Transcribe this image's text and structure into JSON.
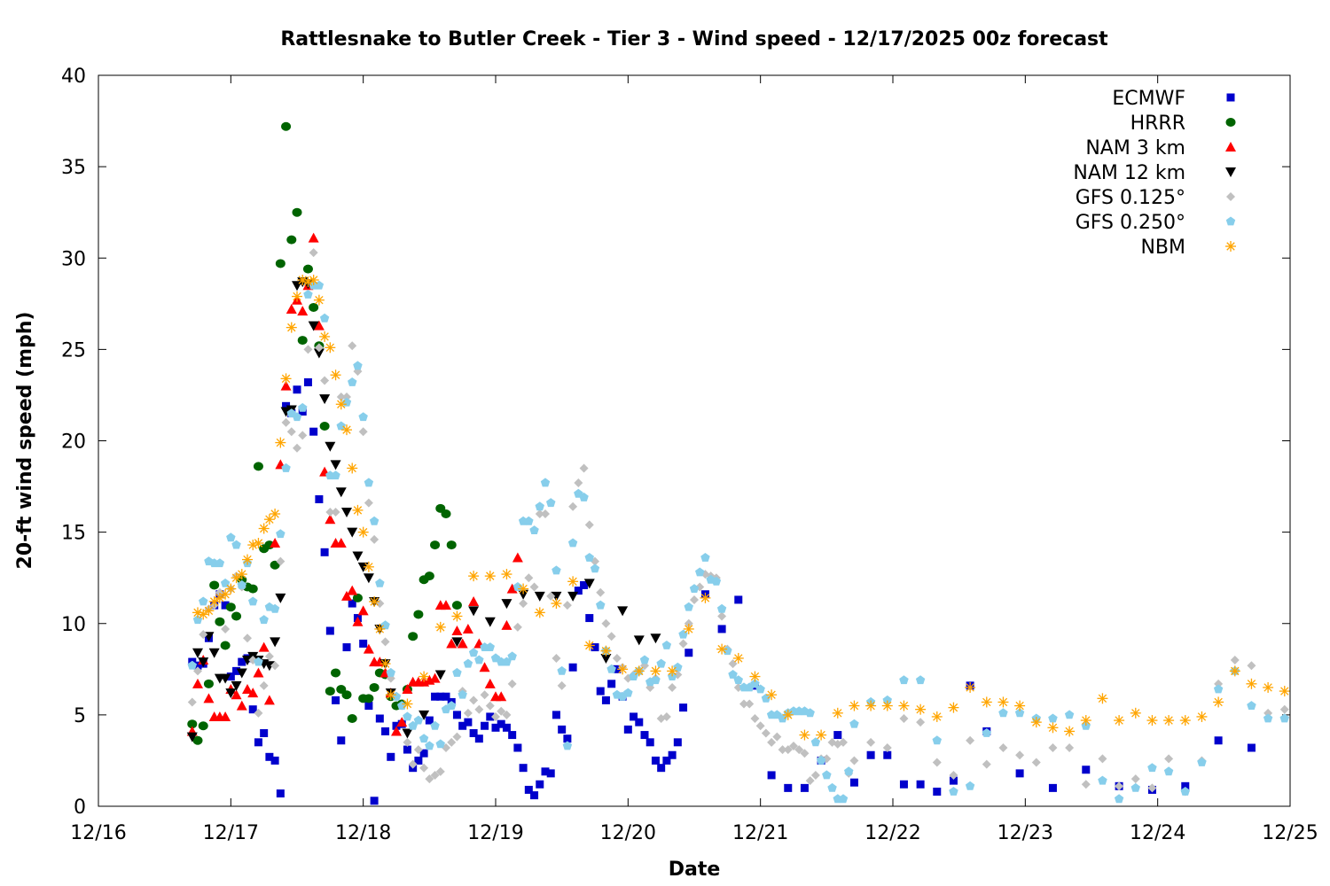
{
  "chart_data": {
    "type": "scatter",
    "title": "Rattlesnake to Butler Creek - Tier 3 - Wind speed - 12/17/2025 00z forecast",
    "xlabel": "Date",
    "ylabel": "20-ft wind speed (mph)",
    "xlim": [
      "2025-12-16T00:00",
      "2025-12-25T00:00"
    ],
    "ylim": [
      0,
      40
    ],
    "x_ticks": [
      "12/16",
      "12/17",
      "12/18",
      "12/19",
      "12/20",
      "12/21",
      "12/22",
      "12/23",
      "12/24",
      "12/25"
    ],
    "y_ticks": [
      "0",
      "5",
      "10",
      "15",
      "20",
      "25",
      "30",
      "35",
      "40"
    ],
    "grid": false,
    "legend_position": "top-right",
    "series": [
      {
        "name": "ECMWF",
        "marker": "square",
        "color": "#0000cc",
        "segments": [
          {
            "start": "2025-12-16T17:00",
            "step_hours": 1,
            "values": [
              7.9,
              7.7,
              7.8,
              9.2,
              11.0,
              11.6,
              11.0,
              7.1,
              7.4,
              7.9,
              8.1,
              5.3,
              3.5,
              4.0,
              2.7,
              2.5,
              0.7,
              21.9,
              21.5,
              22.8,
              21.6,
              23.2,
              20.5,
              16.8,
              13.9,
              9.6,
              5.8,
              3.6,
              8.7,
              11.1,
              10.3,
              8.9,
              5.5,
              0.3,
              4.8,
              4.1,
              2.7,
              4.4,
              4.5,
              3.1,
              2.1,
              2.5,
              2.9,
              4.7,
              6.0,
              6.0,
              6.0,
              5.7,
              5.0,
              4.4,
              4.6,
              4.0,
              3.7,
              4.4,
              4.9,
              4.3,
              4.5,
              4.3,
              3.9,
              3.2,
              2.1,
              0.9,
              0.6,
              1.2,
              1.9,
              1.8,
              5.0,
              4.2,
              3.7,
              7.6,
              11.8,
              12.1,
              10.3,
              8.7,
              6.3,
              5.8,
              6.7,
              7.5,
              6.0,
              4.2,
              4.9,
              4.6,
              3.9,
              3.5,
              2.5,
              2.1,
              2.5,
              2.8,
              3.5,
              5.4,
              8.4
            ]
          },
          {
            "start": "2025-12-20T14:00",
            "step_hours": 3,
            "values": [
              11.6,
              9.7,
              11.3,
              6.6,
              1.7,
              1.0,
              1.0,
              2.5,
              3.9,
              1.3,
              2.8,
              2.8,
              1.2,
              1.2,
              0.8,
              1.4,
              6.6,
              4.1
            ]
          },
          {
            "start": "2025-12-22T23:00",
            "step_hours": 6,
            "values": [
              1.8,
              1.0,
              2.0,
              1.1,
              0.9,
              1.1,
              3.6,
              3.2
            ]
          }
        ]
      },
      {
        "name": "HRRR",
        "marker": "circle",
        "color": "#006400",
        "segments": [
          {
            "start": "2025-12-16T17:00",
            "step_hours": 1,
            "values": [
              4.5,
              3.6,
              4.4,
              6.7,
              12.1,
              10.1,
              8.8,
              10.9,
              10.4,
              12.4,
              12.0,
              11.9,
              18.6,
              14.1,
              14.3,
              13.2,
              29.7,
              37.2,
              31.0,
              32.5,
              25.5,
              29.4,
              27.3,
              25.2,
              20.8,
              6.3,
              7.3,
              6.4,
              6.1,
              4.8,
              11.4,
              5.9,
              5.9,
              6.5,
              7.3,
              7.2,
              6.0,
              5.5,
              5.6,
              6.4,
              9.3,
              10.5,
              12.4,
              12.6,
              14.3,
              16.3,
              16.0,
              14.3,
              11.0
            ]
          }
        ]
      },
      {
        "name": "NAM 3 km",
        "marker": "triangle-up",
        "color": "#ff0000",
        "segments": [
          {
            "start": "2025-12-16T17:00",
            "step_hours": 1,
            "values": [
              4.1,
              6.7,
              8.0,
              5.9,
              4.9,
              4.9,
              4.9,
              6.4,
              6.1,
              5.5,
              6.4,
              6.2,
              7.3,
              8.7,
              5.8,
              14.4,
              18.7,
              23.0,
              27.2,
              27.7,
              27.1,
              28.5,
              31.1,
              26.3,
              18.3,
              15.7,
              14.4,
              14.4,
              11.5,
              11.8,
              10.1,
              10.7,
              8.6,
              7.9,
              7.9,
              7.3,
              6.2,
              4.1,
              4.6,
              6.4,
              6.8,
              6.8,
              6.8,
              6.9,
              7.0,
              11.0,
              11.0,
              8.9,
              9.6,
              8.9,
              9.7,
              11.2,
              8.9,
              7.6,
              6.7,
              6.0,
              6.0,
              9.9,
              11.9,
              13.6
            ]
          }
        ]
      },
      {
        "name": "NAM 12 km",
        "marker": "triangle-down",
        "color": "#000000",
        "segments": [
          {
            "start": "2025-12-16T17:00",
            "step_hours": 1,
            "values": [
              3.8,
              8.4,
              7.9,
              9.3,
              8.4,
              7.0,
              7.0,
              6.2,
              6.6,
              7.3,
              8.0,
              8.2,
              8.0,
              7.8,
              7.7,
              9.0,
              11.4,
              21.6,
              21.7,
              28.5,
              28.7,
              28.6,
              26.3,
              24.8,
              22.3,
              19.7,
              18.7,
              17.2,
              16.1,
              15.0,
              13.7,
              13.1,
              12.5,
              11.2,
              9.7,
              7.8
            ]
          },
          {
            "start": "2025-12-18T05:00",
            "step_hours": 3,
            "values": [
              6.2,
              4.0,
              5.0,
              7.2,
              9.0,
              10.7,
              10.1,
              11.1,
              11.6,
              11.5,
              11.5,
              11.5,
              12.2,
              8.1,
              10.7,
              9.1,
              9.2
            ]
          }
        ]
      },
      {
        "name": "GFS 0.125°",
        "marker": "diamond",
        "color": "#c0c0c0",
        "segments": [
          {
            "start": "2025-12-16T17:00",
            "step_hours": 1,
            "values": [
              5.7,
              7.4,
              9.4,
              10.8,
              11.0,
              11.7,
              9.7,
              11.9,
              12.6,
              12.0,
              9.2,
              8.0,
              5.1,
              6.6,
              8.2,
              7.7,
              13.4,
              21.0,
              20.5,
              19.6,
              20.3,
              25.0,
              30.3,
              25.1,
              23.3,
              16.1,
              16.1,
              22.4,
              22.4,
              25.2,
              23.8,
              20.5,
              16.6,
              14.6,
              11.1,
              9.0,
              7.0,
              6.0,
              5.5,
              3.5,
              2.3,
              3.1,
              2.1,
              1.5,
              1.7,
              1.9,
              3.2,
              3.5,
              3.8,
              6.3,
              5.1,
              5.8,
              5.3,
              6.1,
              5.5,
              4.9,
              5.2,
              5.0,
              6.7,
              9.8,
              11.1,
              12.5,
              12.0,
              16.0,
              16.0,
              11.5,
              8.1,
              6.6,
              11.0,
              16.4,
              17.7,
              18.5,
              15.4,
              13.4,
              11.7,
              10.0,
              9.3,
              8.1,
              7.6,
              7.0,
              7.2,
              7.4,
              7.7,
              6.5,
              7.0,
              4.8,
              4.9,
              6.5,
              7.2,
              8.9,
              10.0,
              11.3,
              12.0,
              12.7,
              12.6,
              12.5,
              10.4,
              8.6,
              7.8,
              6.5,
              5.6,
              5.6,
              4.8,
              4.4,
              4.0,
              3.5,
              3.8,
              3.1,
              3.1,
              3.3,
              3.1,
              2.9,
              1.4,
              1.7,
              2.6,
              2.6,
              3.5,
              3.4,
              3.5,
              1.8,
              2.5
            ]
          },
          {
            "start": "2025-12-21T20:00",
            "step_hours": 3,
            "values": [
              3.5,
              3.2,
              4.8,
              4.6,
              2.4,
              1.7,
              3.6,
              2.3,
              3.2,
              2.8,
              2.4,
              3.2,
              3.2,
              1.2,
              2.6,
              1.1,
              1.5,
              1.0,
              2.6,
              0.8,
              2.5,
              6.7,
              8.0,
              7.7,
              5.1,
              5.3
            ]
          }
        ]
      },
      {
        "name": "GFS 0.250°",
        "marker": "pentagon",
        "color": "#87ceeb",
        "segments": [
          {
            "start": "2025-12-16T17:00",
            "step_hours": 1,
            "values": [
              7.7,
              10.2,
              11.2,
              13.4,
              13.3,
              13.3,
              12.2,
              14.7,
              14.3,
              12.1,
              13.3,
              11.2,
              7.9,
              10.2,
              10.9,
              10.8,
              14.9,
              18.5,
              21.5,
              21.3,
              21.8,
              28.0,
              28.5,
              28.5,
              26.7,
              18.1,
              18.1,
              20.8,
              22.1,
              23.2,
              24.1,
              21.3,
              17.7,
              15.6,
              12.2,
              9.9,
              7.3,
              6.0,
              5.5,
              4.9,
              4.4,
              4.7,
              3.7,
              3.3,
              4.4,
              3.4,
              5.3,
              5.5,
              7.3,
              6.1,
              7.8,
              8.4,
              8.0,
              8.7,
              8.7,
              8.1,
              7.9,
              7.9,
              8.2,
              12.0,
              15.6,
              15.6,
              15.1,
              16.4,
              17.7,
              16.6,
              12.9,
              7.4,
              3.3,
              14.4,
              17.1,
              16.9,
              13.6,
              13.0,
              11.0,
              8.5,
              7.5,
              6.1,
              6.0,
              6.2,
              7.1,
              7.4,
              8.0,
              6.8,
              6.9,
              7.8,
              8.8,
              7.1,
              7.6,
              9.4,
              10.9,
              11.9,
              12.8,
              13.6,
              12.4,
              12.3,
              10.8,
              8.5,
              7.2,
              6.9,
              6.5,
              6.5,
              6.7,
              6.4,
              5.9,
              5.0,
              5.0,
              4.8,
              5.1,
              5.2,
              5.2,
              5.2,
              5.1,
              3.5,
              2.5,
              1.7,
              1.0,
              0.4,
              0.4,
              1.9,
              4.5
            ]
          },
          {
            "start": "2025-12-21T20:00",
            "step_hours": 3,
            "values": [
              5.7,
              5.8,
              6.9,
              6.9,
              3.6,
              0.8,
              1.1,
              4.0,
              5.1,
              5.1,
              4.8,
              4.8,
              5.0,
              4.4,
              1.4,
              0.4,
              1.0,
              2.1,
              1.9,
              0.8,
              2.4,
              6.4,
              7.4,
              5.5,
              4.8,
              4.8
            ]
          }
        ]
      },
      {
        "name": "NBM",
        "marker": "asterisk",
        "color": "#ffa500",
        "segments": [
          {
            "start": "2025-12-16T18:00",
            "step_hours": 1,
            "values": [
              10.6,
              10.5,
              10.7,
              11.2,
              11.4,
              11.6,
              11.9,
              12.5,
              12.7,
              13.5,
              14.3,
              14.4,
              15.2,
              15.7,
              16.0,
              19.9,
              23.4,
              26.2,
              27.9,
              28.8,
              28.7,
              28.8,
              27.7,
              25.7,
              25.1,
              23.6,
              22.0,
              20.6,
              18.5,
              16.2,
              15.0,
              13.1,
              11.2,
              9.7,
              7.8,
              6.1
            ]
          },
          {
            "start": "2025-12-18T08:00",
            "step_hours": 3,
            "values": [
              5.6,
              7.1,
              9.8,
              10.4,
              12.6,
              12.6,
              12.7,
              11.9,
              10.6,
              11.1,
              12.3,
              8.8,
              8.5,
              7.5,
              7.4,
              7.4,
              7.4,
              9.7,
              11.4,
              8.6,
              8.1,
              7.1,
              6.1,
              5.0,
              3.9,
              3.9,
              5.1,
              5.5,
              5.5,
              5.5,
              5.5,
              5.3,
              4.9,
              5.4,
              6.5,
              5.7,
              5.7,
              5.5,
              4.6,
              4.3,
              4.1,
              4.7,
              5.9,
              4.7,
              5.1,
              4.7,
              4.7,
              4.7,
              4.9,
              5.7,
              7.4,
              6.7,
              6.5,
              6.3
            ]
          }
        ]
      }
    ]
  }
}
